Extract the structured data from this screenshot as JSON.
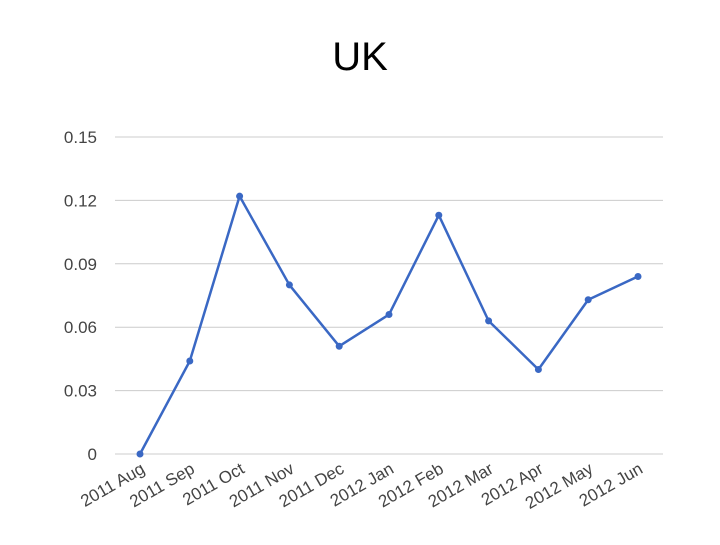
{
  "chart_data": {
    "type": "line",
    "title": "UK",
    "categories": [
      "2011 Aug",
      "2011 Sep",
      "2011 Oct",
      "2011 Nov",
      "2011 Dec",
      "2012 Jan",
      "2012 Feb",
      "2012 Mar",
      "2012 Apr",
      "2012 May",
      "2012 Jun"
    ],
    "values": [
      0,
      0.044,
      0.122,
      0.08,
      0.051,
      0.066,
      0.113,
      0.063,
      0.04,
      0.073,
      0.084
    ],
    "color": "#3a68c4",
    "ylim": [
      0,
      0.15
    ],
    "yticks": [
      0,
      0.03,
      0.06,
      0.09,
      0.12,
      0.15
    ],
    "grid": true
  }
}
